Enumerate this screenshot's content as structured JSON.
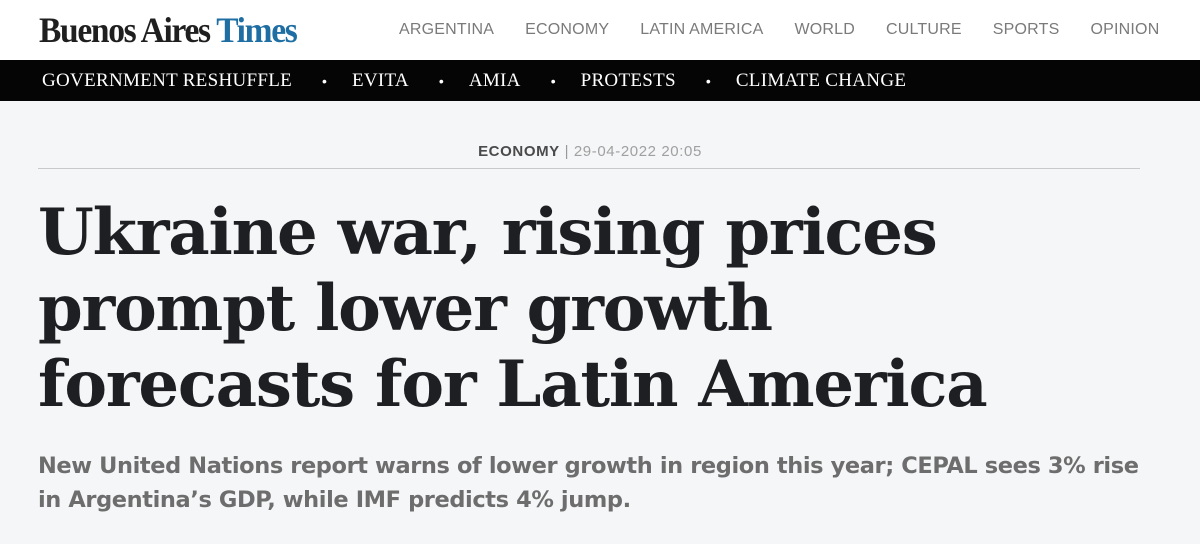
{
  "header": {
    "logo": {
      "primary": "Buenos Aires",
      "accent": "Times",
      "accent_color": "#1e6ea3"
    },
    "nav": [
      "ARGENTINA",
      "ECONOMY",
      "LATIN AMERICA",
      "WORLD",
      "CULTURE",
      "SPORTS",
      "OPINION"
    ]
  },
  "trending": {
    "separator": "•",
    "items": [
      "GOVERNMENT RESHUFFLE",
      "EVITA",
      "AMIA",
      "PROTESTS",
      "CLIMATE CHANGE"
    ]
  },
  "article": {
    "section": "ECONOMY",
    "separator": "|",
    "date": "29-04-2022 20:05",
    "headline_lines": [
      "Ukraine war, rising prices",
      "prompt lower growth",
      "forecasts for Latin America"
    ],
    "standfirst_lines": [
      "New United Nations report warns of lower growth in region this year; CEPAL sees 3% rise",
      "in Argentina’s GDP, while IMF predicts 4% jump."
    ]
  }
}
